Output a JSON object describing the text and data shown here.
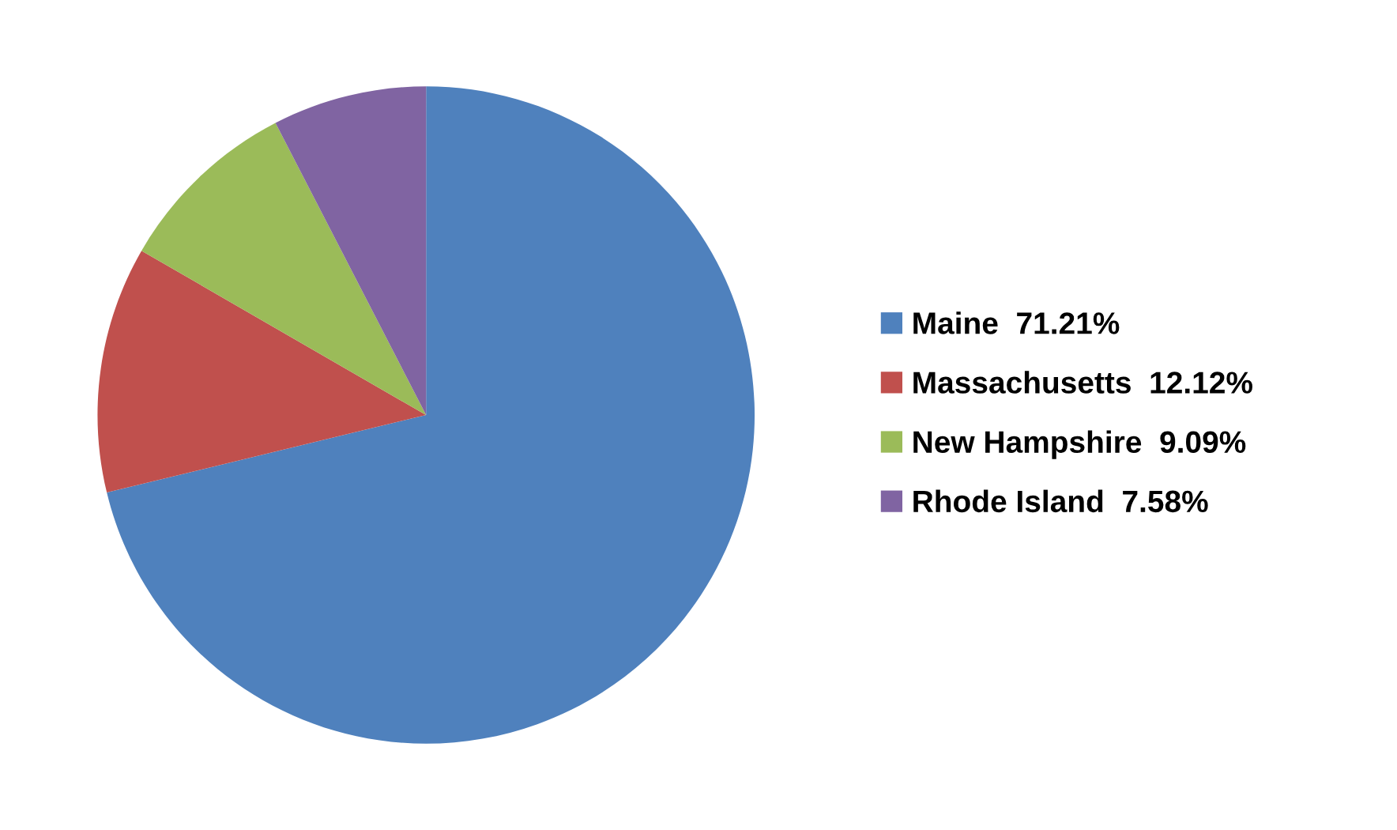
{
  "chart_data": {
    "type": "pie",
    "categories": [
      "Maine",
      "Massachusetts",
      "New Hampshire",
      "Rhode Island"
    ],
    "values": [
      71.21,
      12.12,
      9.09,
      7.58
    ],
    "value_labels": [
      "71.21%",
      "12.12%",
      "9.09%",
      "7.58%"
    ],
    "colors": [
      "#4f81bd",
      "#c0504d",
      "#9bbb59",
      "#8064a2"
    ],
    "legend": "right"
  }
}
